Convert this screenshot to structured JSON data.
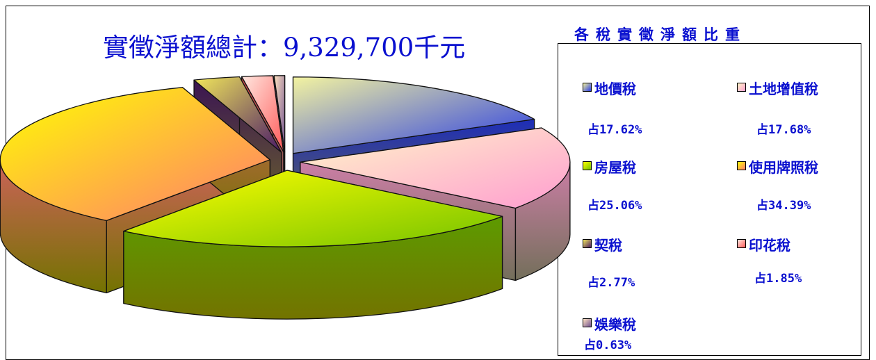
{
  "chart_data": {
    "type": "pie",
    "title": "實徵淨額總計：9,329,700千元",
    "legend_title": "各稅實徵淨額比重",
    "legend_position": "right",
    "slices": [
      {
        "name": "地價稅",
        "value": 17.62,
        "label": "占17.62%",
        "color": "#f3f3a0",
        "color2": "#2438e6"
      },
      {
        "name": "土地增值稅",
        "value": 17.68,
        "label": "占17.68%",
        "color": "#fff7c8",
        "color2": "#ff9dd0"
      },
      {
        "name": "房屋稅",
        "value": 25.06,
        "label": "占25.06%",
        "color": "#ffff00",
        "color2": "#74c200"
      },
      {
        "name": "使用牌照稅",
        "value": 34.39,
        "label": "占34.39%",
        "color": "#ffff00",
        "color2": "#ff7a70"
      },
      {
        "name": "契稅",
        "value": 2.77,
        "label": "占2.77%",
        "color": "#f2e85a",
        "color2": "#4a1a66"
      },
      {
        "name": "印花稅",
        "value": 1.85,
        "label": "占1.85%",
        "color": "#ffe8e0",
        "color2": "#ff5a5a"
      },
      {
        "name": "娛樂稅",
        "value": 0.63,
        "label": "占0.63%",
        "color": "#ffe3c0",
        "color2": "#705090"
      }
    ]
  }
}
